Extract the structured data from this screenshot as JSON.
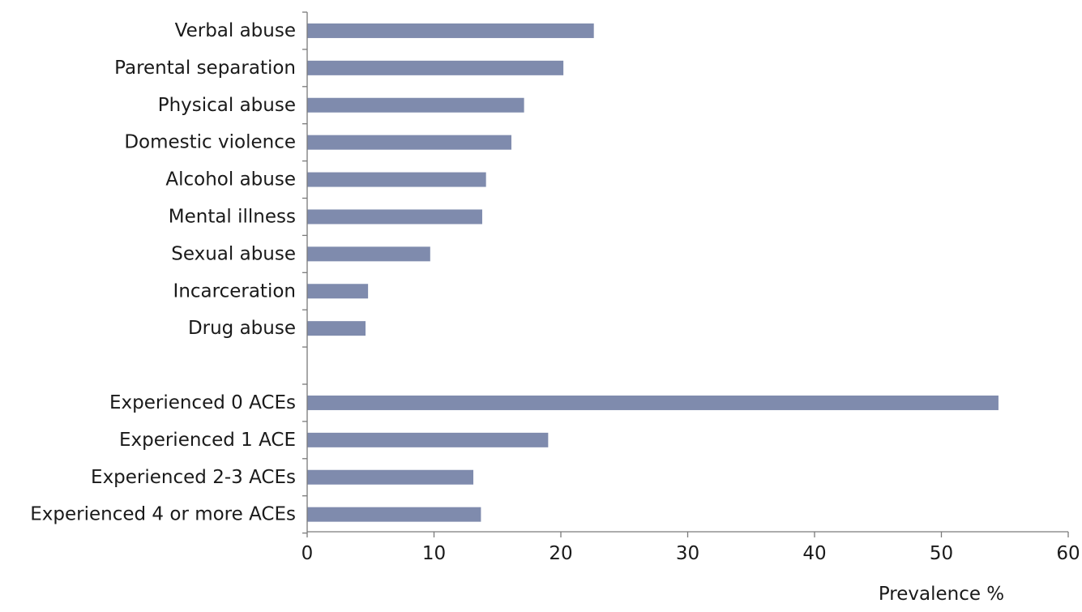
{
  "chart_data": {
    "type": "bar",
    "orientation": "horizontal",
    "categories": [
      "Verbal abuse",
      "Parental separation",
      "Physical abuse",
      "Domestic violence",
      "Alcohol abuse",
      "Mental illness",
      "Sexual abuse",
      "Incarceration",
      "Drug abuse",
      "",
      "Experienced 0 ACEs",
      "Experienced 1 ACE",
      "Experienced 2-3 ACEs",
      "Experienced 4 or more ACEs"
    ],
    "values": [
      22.6,
      20.2,
      17.1,
      16.1,
      14.1,
      13.8,
      9.7,
      4.8,
      4.6,
      null,
      54.5,
      19.0,
      13.1,
      13.7
    ],
    "title": "",
    "xlabel": "Prevalence %",
    "ylabel": "",
    "xlim": [
      0,
      60
    ],
    "xticks": [
      "0",
      "10",
      "20",
      "30",
      "40",
      "50",
      "60"
    ],
    "grid": false,
    "legend": "none",
    "bar_color": "#7f8bad"
  }
}
